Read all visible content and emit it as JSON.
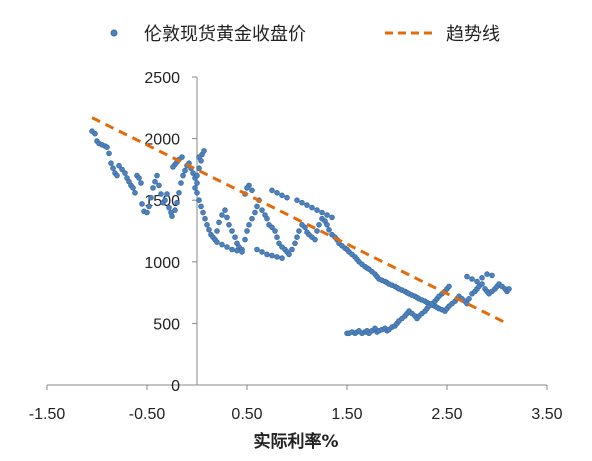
{
  "chart_data": {
    "type": "scatter",
    "title": "",
    "xlabel": "实际利率%",
    "ylabel": "",
    "xlim": [
      -1.5,
      3.5
    ],
    "ylim": [
      0,
      2500
    ],
    "x_ticks": [
      "-1.50",
      "-0.50",
      "0.50",
      "1.50",
      "2.50",
      "3.50"
    ],
    "y_ticks": [
      "0",
      "500",
      "1000",
      "1500",
      "2000",
      "2500"
    ],
    "grid": false,
    "legend_position": "top",
    "series": [
      {
        "name": "伦敦现货黄金收盘价",
        "type": "scatter",
        "color": "#4f81bd",
        "points": [
          [
            -1.05,
            2060
          ],
          [
            -1.02,
            2040
          ],
          [
            -1.0,
            1980
          ],
          [
            -0.98,
            1960
          ],
          [
            -0.95,
            1950
          ],
          [
            -0.92,
            1940
          ],
          [
            -0.9,
            1930
          ],
          [
            -0.88,
            1880
          ],
          [
            -0.86,
            1800
          ],
          [
            -0.84,
            1760
          ],
          [
            -0.82,
            1720
          ],
          [
            -0.8,
            1700
          ],
          [
            -0.78,
            1780
          ],
          [
            -0.75,
            1750
          ],
          [
            -0.72,
            1720
          ],
          [
            -0.7,
            1680
          ],
          [
            -0.68,
            1650
          ],
          [
            -0.66,
            1620
          ],
          [
            -0.64,
            1600
          ],
          [
            -0.62,
            1560
          ],
          [
            -0.6,
            1700
          ],
          [
            -0.58,
            1680
          ],
          [
            -0.56,
            1640
          ],
          [
            -0.55,
            1470
          ],
          [
            -0.53,
            1410
          ],
          [
            -0.5,
            1400
          ],
          [
            -0.48,
            1450
          ],
          [
            -0.46,
            1520
          ],
          [
            -0.44,
            1600
          ],
          [
            -0.42,
            1650
          ],
          [
            -0.4,
            1700
          ],
          [
            -0.38,
            1620
          ],
          [
            -0.36,
            1550
          ],
          [
            -0.34,
            1480
          ],
          [
            -0.32,
            1500
          ],
          [
            -0.3,
            1550
          ],
          [
            -0.28,
            1440
          ],
          [
            -0.26,
            1400
          ],
          [
            -0.25,
            1370
          ],
          [
            -0.22,
            1420
          ],
          [
            -0.2,
            1480
          ],
          [
            -0.18,
            1560
          ],
          [
            -0.16,
            1640
          ],
          [
            -0.14,
            1700
          ],
          [
            -0.12,
            1740
          ],
          [
            -0.1,
            1780
          ],
          [
            -0.08,
            1800
          ],
          [
            -0.06,
            1760
          ],
          [
            -0.04,
            1720
          ],
          [
            -0.02,
            1680
          ],
          [
            0.0,
            1700
          ],
          [
            0.02,
            1760
          ],
          [
            0.04,
            1820
          ],
          [
            0.05,
            1870
          ],
          [
            0.07,
            1900
          ],
          [
            0.02,
            1850
          ],
          [
            0.0,
            1640
          ],
          [
            -0.02,
            1600
          ],
          [
            0.0,
            1560
          ],
          [
            0.02,
            1500
          ],
          [
            0.04,
            1450
          ],
          [
            0.06,
            1400
          ],
          [
            0.08,
            1350
          ],
          [
            0.1,
            1300
          ],
          [
            0.12,
            1260
          ],
          [
            0.14,
            1220
          ],
          [
            0.16,
            1200
          ],
          [
            0.18,
            1180
          ],
          [
            0.2,
            1250
          ],
          [
            0.22,
            1320
          ],
          [
            0.25,
            1380
          ],
          [
            0.28,
            1420
          ],
          [
            0.3,
            1360
          ],
          [
            0.32,
            1300
          ],
          [
            0.35,
            1250
          ],
          [
            0.38,
            1200
          ],
          [
            0.4,
            1150
          ],
          [
            0.42,
            1120
          ],
          [
            0.45,
            1100
          ],
          [
            0.48,
            1180
          ],
          [
            0.5,
            1250
          ],
          [
            0.52,
            1300
          ],
          [
            0.55,
            1350
          ],
          [
            0.58,
            1400
          ],
          [
            0.6,
            1450
          ],
          [
            0.62,
            1500
          ],
          [
            0.55,
            1580
          ],
          [
            0.52,
            1620
          ],
          [
            0.5,
            1600
          ],
          [
            0.48,
            1550
          ],
          [
            0.65,
            1420
          ],
          [
            0.68,
            1380
          ],
          [
            0.7,
            1350
          ],
          [
            0.72,
            1300
          ],
          [
            0.75,
            1280
          ],
          [
            0.78,
            1250
          ],
          [
            0.8,
            1200
          ],
          [
            0.82,
            1150
          ],
          [
            0.85,
            1120
          ],
          [
            0.88,
            1100
          ],
          [
            0.9,
            1080
          ],
          [
            0.92,
            1060
          ],
          [
            0.95,
            1100
          ],
          [
            0.98,
            1150
          ],
          [
            1.0,
            1200
          ],
          [
            1.02,
            1250
          ],
          [
            1.05,
            1300
          ],
          [
            1.08,
            1280
          ],
          [
            1.1,
            1240
          ],
          [
            1.12,
            1220
          ],
          [
            1.15,
            1200
          ],
          [
            1.18,
            1180
          ],
          [
            1.2,
            1250
          ],
          [
            1.22,
            1300
          ],
          [
            1.25,
            1350
          ],
          [
            1.28,
            1330
          ],
          [
            1.3,
            1300
          ],
          [
            1.32,
            1260
          ],
          [
            1.35,
            1220
          ],
          [
            1.38,
            1200
          ],
          [
            1.4,
            1180
          ],
          [
            1.42,
            1150
          ],
          [
            1.45,
            1130
          ],
          [
            1.48,
            1110
          ],
          [
            1.5,
            1100
          ],
          [
            1.52,
            1080
          ],
          [
            1.55,
            1060
          ],
          [
            1.58,
            1040
          ],
          [
            1.6,
            1020
          ],
          [
            1.62,
            1000
          ],
          [
            1.65,
            980
          ],
          [
            1.68,
            960
          ],
          [
            1.7,
            950
          ],
          [
            1.72,
            940
          ],
          [
            1.75,
            920
          ],
          [
            1.78,
            900
          ],
          [
            1.8,
            880
          ],
          [
            1.82,
            860
          ],
          [
            1.85,
            850
          ],
          [
            1.88,
            840
          ],
          [
            1.9,
            830
          ],
          [
            1.92,
            820
          ],
          [
            1.95,
            810
          ],
          [
            1.98,
            800
          ],
          [
            2.0,
            790
          ],
          [
            2.02,
            780
          ],
          [
            2.05,
            770
          ],
          [
            2.08,
            760
          ],
          [
            2.1,
            750
          ],
          [
            2.12,
            740
          ],
          [
            2.15,
            730
          ],
          [
            2.18,
            720
          ],
          [
            2.2,
            710
          ],
          [
            2.22,
            700
          ],
          [
            2.25,
            690
          ],
          [
            2.28,
            680
          ],
          [
            2.3,
            670
          ],
          [
            2.32,
            660
          ],
          [
            2.35,
            650
          ],
          [
            2.38,
            640
          ],
          [
            2.4,
            630
          ],
          [
            2.42,
            620
          ],
          [
            2.45,
            610
          ],
          [
            2.48,
            600
          ],
          [
            2.5,
            620
          ],
          [
            2.52,
            640
          ],
          [
            2.55,
            660
          ],
          [
            2.58,
            680
          ],
          [
            2.6,
            700
          ],
          [
            2.62,
            720
          ],
          [
            2.65,
            700
          ],
          [
            2.68,
            680
          ],
          [
            2.7,
            660
          ],
          [
            2.72,
            700
          ],
          [
            2.75,
            740
          ],
          [
            2.78,
            760
          ],
          [
            2.8,
            780
          ],
          [
            2.82,
            800
          ],
          [
            2.85,
            820
          ],
          [
            2.88,
            780
          ],
          [
            2.9,
            760
          ],
          [
            2.92,
            740
          ],
          [
            2.95,
            760
          ],
          [
            2.98,
            780
          ],
          [
            3.0,
            800
          ],
          [
            3.02,
            820
          ],
          [
            3.05,
            800
          ],
          [
            3.08,
            780
          ],
          [
            3.1,
            760
          ],
          [
            3.12,
            780
          ],
          [
            2.7,
            880
          ],
          [
            2.75,
            860
          ],
          [
            2.8,
            840
          ],
          [
            2.85,
            870
          ],
          [
            2.9,
            900
          ],
          [
            2.95,
            890
          ],
          [
            1.5,
            420
          ],
          [
            1.52,
            420
          ],
          [
            1.55,
            430
          ],
          [
            1.58,
            420
          ],
          [
            1.6,
            430
          ],
          [
            1.62,
            440
          ],
          [
            1.65,
            420
          ],
          [
            1.68,
            430
          ],
          [
            1.7,
            440
          ],
          [
            1.72,
            420
          ],
          [
            1.75,
            440
          ],
          [
            1.78,
            460
          ],
          [
            1.8,
            430
          ],
          [
            1.82,
            440
          ],
          [
            1.85,
            450
          ],
          [
            1.88,
            460
          ],
          [
            1.9,
            440
          ],
          [
            1.92,
            450
          ],
          [
            1.95,
            470
          ],
          [
            1.98,
            480
          ],
          [
            2.0,
            500
          ],
          [
            2.02,
            520
          ],
          [
            2.05,
            540
          ],
          [
            2.08,
            560
          ],
          [
            2.1,
            580
          ],
          [
            2.12,
            600
          ],
          [
            2.15,
            580
          ],
          [
            2.18,
            560
          ],
          [
            2.2,
            540
          ],
          [
            2.22,
            560
          ],
          [
            2.25,
            580
          ],
          [
            2.28,
            600
          ],
          [
            2.3,
            620
          ],
          [
            2.32,
            640
          ],
          [
            2.35,
            660
          ],
          [
            2.38,
            680
          ],
          [
            2.4,
            700
          ],
          [
            2.42,
            720
          ],
          [
            2.45,
            740
          ],
          [
            2.48,
            760
          ],
          [
            2.5,
            780
          ],
          [
            2.52,
            800
          ],
          [
            0.2,
            1160
          ],
          [
            0.25,
            1140
          ],
          [
            0.3,
            1120
          ],
          [
            0.35,
            1100
          ],
          [
            0.4,
            1090
          ],
          [
            0.45,
            1080
          ],
          [
            0.6,
            1100
          ],
          [
            0.65,
            1080
          ],
          [
            0.7,
            1060
          ],
          [
            0.75,
            1050
          ],
          [
            0.8,
            1040
          ],
          [
            0.85,
            1030
          ],
          [
            1.0,
            1500
          ],
          [
            1.05,
            1480
          ],
          [
            1.1,
            1460
          ],
          [
            1.15,
            1440
          ],
          [
            1.2,
            1420
          ],
          [
            1.25,
            1400
          ],
          [
            1.3,
            1380
          ],
          [
            1.35,
            1360
          ],
          [
            0.9,
            1520
          ],
          [
            0.85,
            1540
          ],
          [
            0.8,
            1560
          ],
          [
            0.75,
            1580
          ],
          [
            -0.15,
            1850
          ],
          [
            -0.18,
            1830
          ],
          [
            -0.2,
            1810
          ],
          [
            -0.22,
            1790
          ],
          [
            -0.24,
            1770
          ]
        ]
      },
      {
        "name": "趋势线",
        "type": "line",
        "style": "dashed",
        "color": "#e36c0a",
        "points": [
          [
            -1.05,
            2170
          ],
          [
            3.1,
            500
          ]
        ]
      }
    ]
  }
}
